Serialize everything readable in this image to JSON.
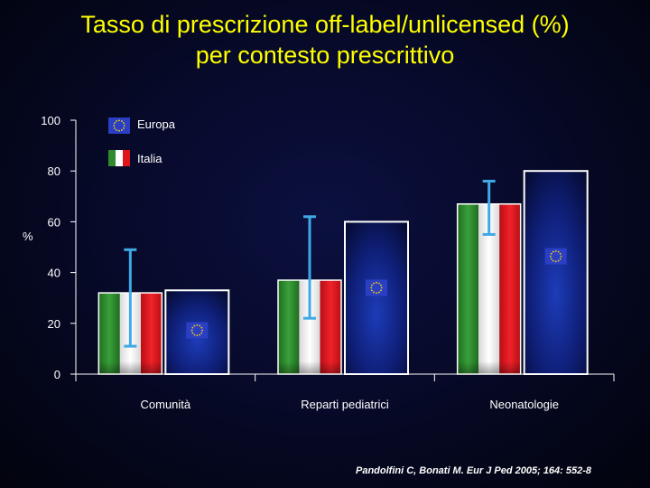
{
  "title_line1": "Tasso di prescrizione off-label/unlicensed (%)",
  "title_line2": "per contesto prescrittivo",
  "citation": "Pandolfini C, Bonati M. Eur J Ped 2005; 164: 552-8",
  "chart_data": {
    "type": "bar",
    "ylabel": "%",
    "ylim": [
      0,
      100
    ],
    "yticks": [
      0,
      20,
      40,
      60,
      80,
      100
    ],
    "categories": [
      "Comunità",
      "Reparti pediatrici",
      "Neonatologie"
    ],
    "series": [
      {
        "name": "Italia",
        "values": [
          32,
          37,
          67
        ],
        "error_low": [
          11,
          22,
          55
        ],
        "error_high": [
          49,
          62,
          76
        ]
      },
      {
        "name": "Europa",
        "values": [
          33,
          60,
          80
        ]
      }
    ],
    "legend": [
      "Europa",
      "Italia"
    ],
    "legend_position": "top-left",
    "colors": {
      "italy_green": "#2e8b2e",
      "italy_white": "#f4f4f4",
      "italy_red": "#e0141b",
      "europa_blue": "#13207a",
      "error_bar": "#3fa9e6",
      "axis": "#ffffff",
      "title": "#ffff00"
    }
  }
}
